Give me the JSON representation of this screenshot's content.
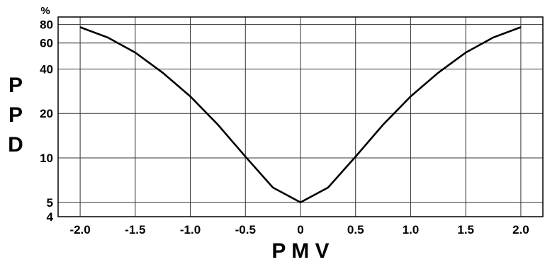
{
  "chart_data": {
    "type": "line",
    "xlabel": "P M V",
    "ylabel": "PPD",
    "ylabel_letters": [
      "P",
      "P",
      "D"
    ],
    "y_unit": "%",
    "y_scale": "log",
    "xlim": [
      -2.2,
      2.2
    ],
    "ylim": [
      4,
      90
    ],
    "x_ticks": [
      -2.0,
      -1.5,
      -1.0,
      -0.5,
      0,
      0.5,
      1.0,
      1.5,
      2.0
    ],
    "x_tick_labels": [
      "-2.0",
      "-1.5",
      "-1.0",
      "-0.5",
      "0",
      "0.5",
      "1.0",
      "1.5",
      "2.0"
    ],
    "y_ticks": [
      4,
      5,
      10,
      20,
      40,
      60,
      80
    ],
    "y_tick_labels": [
      "4",
      "5",
      "10",
      "20",
      "40",
      "60",
      "80"
    ],
    "grid": true,
    "line_color": "#000000",
    "series": [
      {
        "x": [
          -2.0,
          -1.75,
          -1.5,
          -1.25,
          -1.0,
          -0.75,
          -0.5,
          -0.25,
          0,
          0.25,
          0.5,
          0.75,
          1.0,
          1.25,
          1.5,
          1.75,
          2.0
        ],
        "y": [
          76.8,
          65.4,
          51.7,
          37.7,
          26.1,
          16.8,
          10.2,
          6.3,
          5.0,
          6.3,
          10.2,
          16.8,
          26.1,
          37.7,
          51.7,
          65.4,
          76.8
        ]
      }
    ]
  }
}
